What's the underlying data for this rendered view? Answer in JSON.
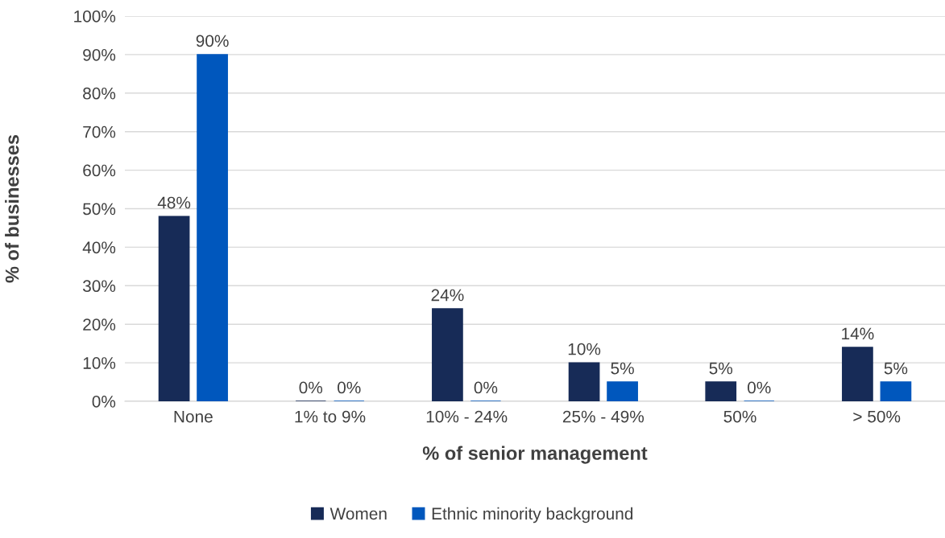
{
  "chart_data": {
    "type": "bar",
    "xlabel": "% of senior management",
    "ylabel": "% of businesses",
    "categories": [
      "None",
      "1% to 9%",
      "10% - 24%",
      "25% - 49%",
      "50%",
      "> 50%"
    ],
    "series": [
      {
        "name": "Women",
        "color": "#172b57",
        "values": [
          48,
          0,
          24,
          10,
          5,
          14
        ],
        "value_labels": [
          "48%",
          "0%",
          "24%",
          "10%",
          "5%",
          "14%"
        ]
      },
      {
        "name": "Ethnic minority background",
        "color": "#0057bd",
        "values": [
          90,
          0,
          0,
          5,
          0,
          5
        ],
        "value_labels": [
          "90%",
          "0%",
          "0%",
          "5%",
          "0%",
          "5%"
        ]
      }
    ],
    "ylim": [
      0,
      100
    ],
    "yticks": [
      {
        "value": 0,
        "label": "0%"
      },
      {
        "value": 10,
        "label": "10%"
      },
      {
        "value": 20,
        "label": "20%"
      },
      {
        "value": 30,
        "label": "30%"
      },
      {
        "value": 40,
        "label": "40%"
      },
      {
        "value": 50,
        "label": "50%"
      },
      {
        "value": 60,
        "label": "60%"
      },
      {
        "value": 70,
        "label": "70%"
      },
      {
        "value": 80,
        "label": "80%"
      },
      {
        "value": 90,
        "label": "90%"
      },
      {
        "value": 100,
        "label": "100%"
      }
    ],
    "grid": "y",
    "legend": "bottom"
  }
}
